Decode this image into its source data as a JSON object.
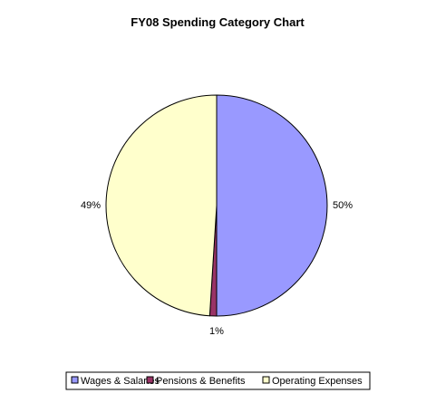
{
  "chart_data": {
    "type": "pie",
    "title": "FY08 Spending Category Chart",
    "slices": [
      {
        "label": "Wages & Salaries",
        "value": 50,
        "display": "50%",
        "color": "#9999FF"
      },
      {
        "label": "Pensions & Benefits",
        "value": 1,
        "display": "1%",
        "color": "#993366"
      },
      {
        "label": "Operating Expenses",
        "value": 49,
        "display": "49%",
        "color": "#FFFFCC"
      }
    ],
    "legend_position": "bottom",
    "outline_color": "#000000"
  }
}
